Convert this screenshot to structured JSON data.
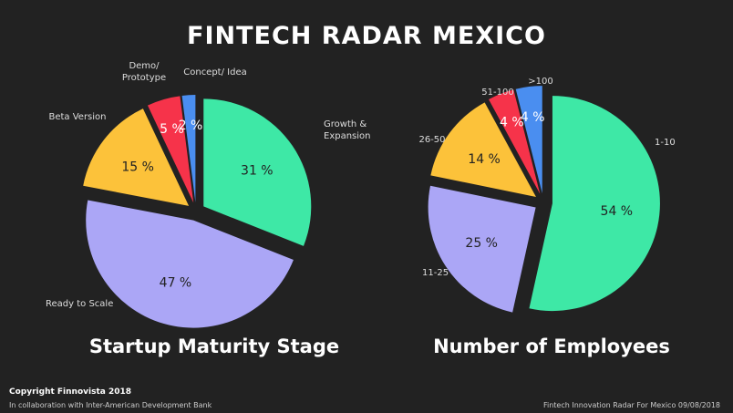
{
  "title": "FINTECH RADAR MEXICO",
  "chart_data": [
    {
      "type": "pie",
      "title": "Startup Maturity Stage",
      "slices": [
        {
          "label": "Growth & Expansion",
          "value": 31,
          "value_label": "31 %",
          "color": "#3ee8a6"
        },
        {
          "label": "Ready to Scale",
          "value": 47,
          "value_label": "47 %",
          "color": "#aba6f6"
        },
        {
          "label": "Beta Version",
          "value": 15,
          "value_label": "15 %",
          "color": "#fcc23a"
        },
        {
          "label": "Demo/ Prototype",
          "value": 5,
          "value_label": "5 %",
          "color": "#f6334a"
        },
        {
          "label": "Concept/ Idea",
          "value": 2,
          "value_label": "2 %",
          "color": "#4a8ef0"
        }
      ]
    },
    {
      "type": "pie",
      "title": "Number of Employees",
      "slices": [
        {
          "label": "1-10",
          "value": 54,
          "value_label": "54 %",
          "color": "#3ee8a6"
        },
        {
          "label": "11-25",
          "value": 25,
          "value_label": "25 %",
          "color": "#aba6f6"
        },
        {
          "label": "26-50",
          "value": 14,
          "value_label": "14 %",
          "color": "#fcc23a"
        },
        {
          "label": "51-100",
          "value": 4,
          "value_label": "4 %",
          "color": "#f6334a"
        },
        {
          "label": ">100",
          "value": 4,
          "value_label": "4 %",
          "color": "#4a8ef0"
        }
      ]
    }
  ],
  "footer": {
    "copyright": "Copyright Finnovista 2018",
    "collab": "In collaboration with Inter-American Development Bank",
    "right": "Fintech Innovation Radar For Mexico 09/08/2018"
  }
}
